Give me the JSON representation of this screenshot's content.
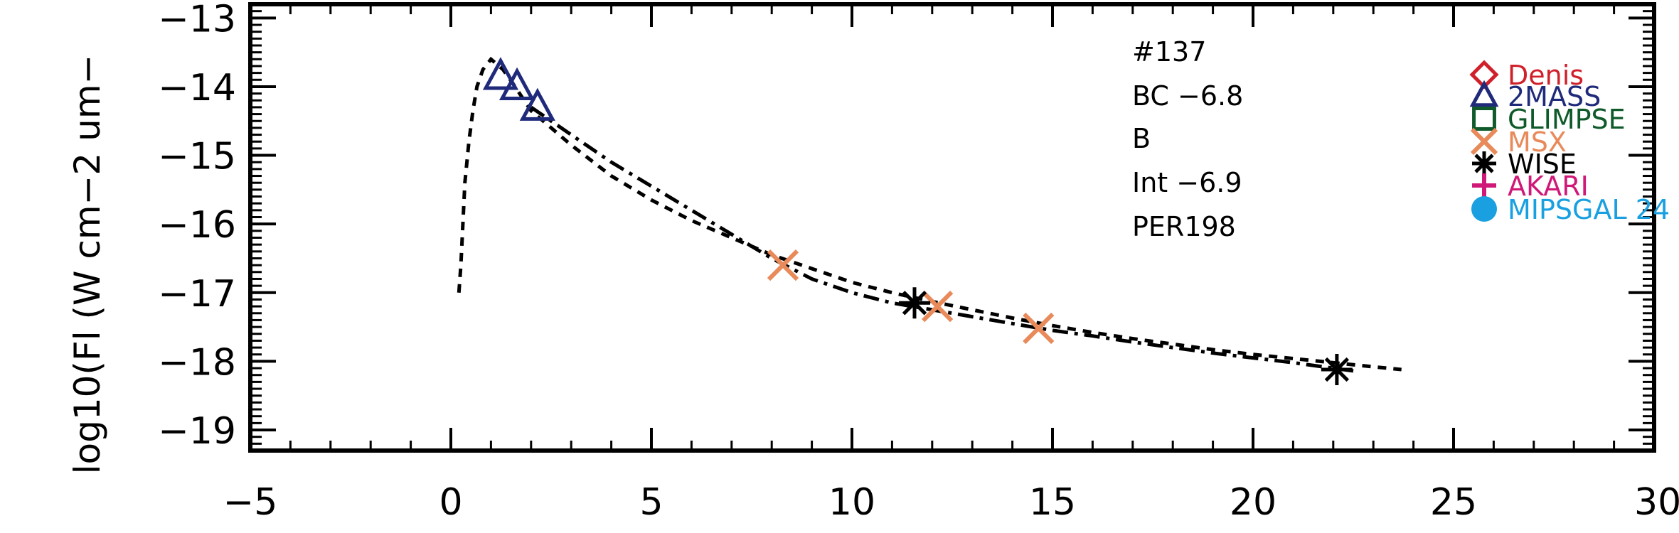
{
  "chart_data": {
    "type": "line",
    "ylabel": "log10(Fl (W cm−2 um−",
    "xlim": [
      -5,
      30
    ],
    "ylim": [
      -19.3,
      -12.8
    ],
    "x_ticks": [
      -5,
      0,
      5,
      10,
      15,
      20,
      25,
      30
    ],
    "x_tick_labels": [
      "−5",
      "0",
      "5",
      "10",
      "15",
      "20",
      "25",
      "30"
    ],
    "y_ticks": [
      -19,
      -18,
      -17,
      -16,
      -15,
      -14,
      -13
    ],
    "y_tick_labels": [
      "−19",
      "−18",
      "−17",
      "−16",
      "−15",
      "−14",
      "−13"
    ],
    "annotations": [
      "#137",
      "BC −6.8",
      "B",
      "Int −6.9",
      "PER198"
    ],
    "legend": [
      {
        "label": "Denis",
        "color": "#d0202a",
        "marker": "diamond"
      },
      {
        "label": "2MASS",
        "color": "#1f2a7a",
        "marker": "triangle"
      },
      {
        "label": "GLIMPSE",
        "color": "#0f5a2a",
        "marker": "square"
      },
      {
        "label": "MSX",
        "color": "#e88a5a",
        "marker": "x"
      },
      {
        "label": "WISE",
        "color": "#000000",
        "marker": "asterisk"
      },
      {
        "label": "AKARI",
        "color": "#d01878",
        "marker": "plus"
      },
      {
        "label": "MIPSGAL 24",
        "color": "#1aa0e0",
        "marker": "circle"
      }
    ],
    "series": [
      {
        "style": "dashed",
        "x": [
          0.2,
          0.25,
          0.3,
          0.35,
          0.45,
          0.55,
          0.65,
          0.8,
          1.0,
          1.3,
          1.6,
          2.0,
          2.5,
          3.0,
          4.0,
          5.0,
          6.0,
          7.0,
          8.0,
          9.0,
          10.0,
          11.0,
          12.0,
          13.0,
          14.0,
          15.0,
          16.0,
          17.0,
          18.0,
          19.0,
          20.0,
          21.0,
          22.0,
          23.0,
          23.7
        ],
        "y": [
          -17.0,
          -16.6,
          -16.0,
          -15.4,
          -14.8,
          -14.35,
          -14.0,
          -13.75,
          -13.6,
          -13.75,
          -14.0,
          -14.35,
          -14.6,
          -14.85,
          -15.3,
          -15.65,
          -15.95,
          -16.2,
          -16.45,
          -16.65,
          -16.85,
          -17.0,
          -17.13,
          -17.25,
          -17.37,
          -17.48,
          -17.58,
          -17.67,
          -17.75,
          -17.83,
          -17.9,
          -17.96,
          -18.02,
          -18.08,
          -18.12
        ]
      },
      {
        "style": "dashdot",
        "x": [
          2.0,
          3.0,
          4.0,
          5.0,
          6.0,
          7.0,
          8.0,
          9.0,
          10.0,
          11.0,
          12.0,
          13.0,
          14.0,
          15.0,
          16.0,
          17.0,
          18.0,
          19.0,
          20.0,
          21.0,
          22.0,
          22.5
        ],
        "y": [
          -14.3,
          -14.7,
          -15.1,
          -15.45,
          -15.8,
          -16.15,
          -16.5,
          -16.8,
          -17.0,
          -17.15,
          -17.25,
          -17.35,
          -17.45,
          -17.55,
          -17.63,
          -17.72,
          -17.8,
          -17.88,
          -17.95,
          -18.02,
          -18.1,
          -18.14
        ]
      }
    ],
    "points": [
      {
        "set": "2MASS",
        "marker": "triangle",
        "color": "#1f2a7a",
        "x": 1.24,
        "y": -13.85
      },
      {
        "set": "2MASS",
        "marker": "triangle",
        "color": "#1f2a7a",
        "x": 1.65,
        "y": -14.0
      },
      {
        "set": "2MASS",
        "marker": "triangle",
        "color": "#1f2a7a",
        "x": 2.16,
        "y": -14.3
      },
      {
        "set": "MSX",
        "marker": "x",
        "color": "#e88a5a",
        "x": 8.28,
        "y": -16.6
      },
      {
        "set": "MSX",
        "marker": "x",
        "color": "#e88a5a",
        "x": 12.13,
        "y": -17.2
      },
      {
        "set": "MSX",
        "marker": "x",
        "color": "#e88a5a",
        "x": 14.65,
        "y": -17.52
      },
      {
        "set": "WISE",
        "marker": "asterisk",
        "color": "#000000",
        "x": 11.56,
        "y": -17.15
      },
      {
        "set": "WISE",
        "marker": "asterisk",
        "color": "#000000",
        "x": 22.09,
        "y": -18.12
      }
    ]
  }
}
